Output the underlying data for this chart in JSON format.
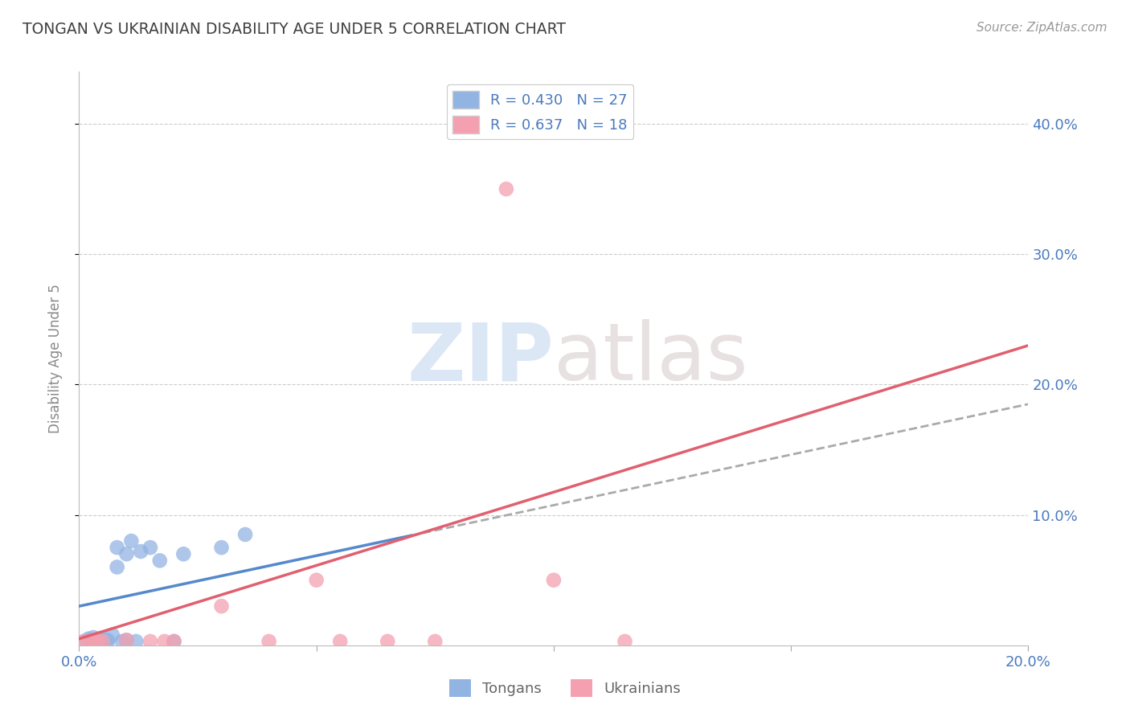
{
  "title": "TONGAN VS UKRAINIAN DISABILITY AGE UNDER 5 CORRELATION CHART",
  "source": "Source: ZipAtlas.com",
  "ylabel": "Disability Age Under 5",
  "xlim": [
    0.0,
    0.2
  ],
  "ylim": [
    0.0,
    0.44
  ],
  "tongan_R": 0.43,
  "tongan_N": 27,
  "ukrainian_R": 0.637,
  "ukrainian_N": 18,
  "tongan_color": "#92b4e3",
  "ukrainian_color": "#f4a0b0",
  "tongan_line_color": "#5588cc",
  "ukrainian_line_color": "#e06070",
  "background_color": "#ffffff",
  "grid_color": "#cccccc",
  "title_color": "#404040",
  "axis_label_color": "#4a7abf",
  "tongan_x": [
    0.001,
    0.002,
    0.002,
    0.003,
    0.003,
    0.004,
    0.004,
    0.005,
    0.005,
    0.005,
    0.006,
    0.006,
    0.007,
    0.008,
    0.008,
    0.009,
    0.01,
    0.01,
    0.011,
    0.012,
    0.013,
    0.015,
    0.017,
    0.02,
    0.022,
    0.03,
    0.035
  ],
  "tongan_y": [
    0.003,
    0.004,
    0.005,
    0.003,
    0.006,
    0.004,
    0.005,
    0.003,
    0.004,
    0.005,
    0.003,
    0.004,
    0.008,
    0.06,
    0.075,
    0.003,
    0.07,
    0.004,
    0.08,
    0.003,
    0.072,
    0.075,
    0.065,
    0.003,
    0.07,
    0.075,
    0.085
  ],
  "ukrainian_x": [
    0.001,
    0.002,
    0.003,
    0.004,
    0.005,
    0.01,
    0.015,
    0.018,
    0.02,
    0.03,
    0.04,
    0.05,
    0.055,
    0.065,
    0.075,
    0.09,
    0.1,
    0.115
  ],
  "ukrainian_y": [
    0.003,
    0.003,
    0.004,
    0.003,
    0.003,
    0.004,
    0.003,
    0.003,
    0.003,
    0.03,
    0.003,
    0.05,
    0.003,
    0.003,
    0.003,
    0.35,
    0.05,
    0.003
  ],
  "tongan_line_x0": 0.0,
  "tongan_line_y0": 0.03,
  "tongan_line_x1": 0.2,
  "tongan_line_y1": 0.185,
  "ukrainian_line_x0": 0.0,
  "ukrainian_line_y0": 0.005,
  "ukrainian_line_x1": 0.2,
  "ukrainian_line_y1": 0.23
}
